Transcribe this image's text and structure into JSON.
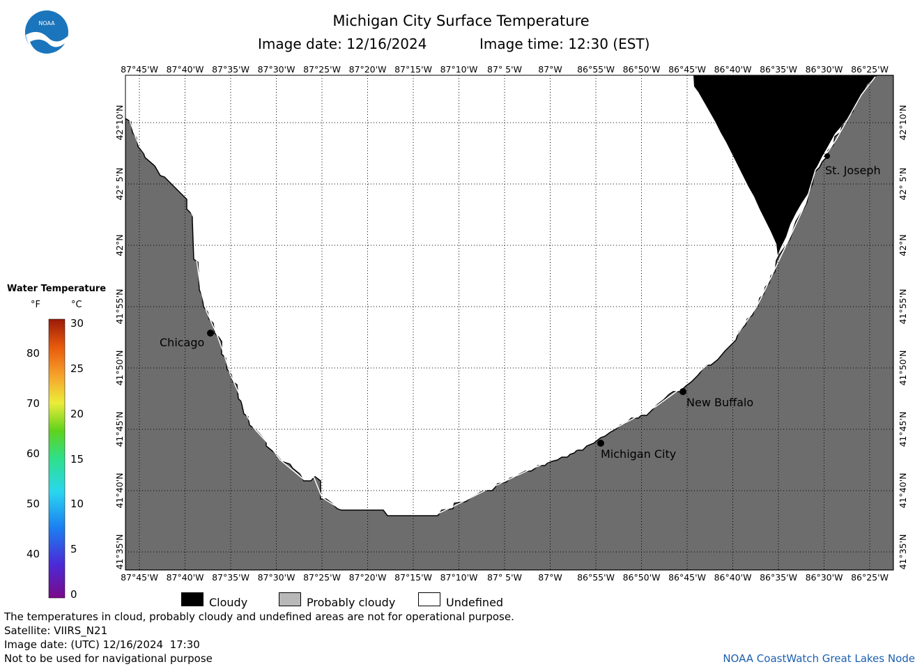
{
  "header": {
    "title": "Michigan City Surface Temperature",
    "image_date": "Image date: 12/16/2024",
    "image_time": "Image time: 12:30 (EST)"
  },
  "logo": {
    "text": "NOAA"
  },
  "colorbar": {
    "title": "Water Temperature",
    "unit_f": "°F",
    "unit_c": "°C",
    "f_ticks": [
      {
        "value": 80,
        "label": "80"
      },
      {
        "value": 70,
        "label": "70"
      },
      {
        "value": 60,
        "label": "60"
      },
      {
        "value": 50,
        "label": "50"
      },
      {
        "value": 40,
        "label": "40"
      }
    ],
    "c_ticks": [
      {
        "value": 30,
        "label": "30"
      },
      {
        "value": 25,
        "label": "25"
      },
      {
        "value": 20,
        "label": "20"
      },
      {
        "value": 15,
        "label": "15"
      },
      {
        "value": 10,
        "label": "10"
      },
      {
        "value": 5,
        "label": "5"
      },
      {
        "value": 0,
        "label": "0"
      }
    ]
  },
  "map": {
    "lon_labels": [
      "87°45'W",
      "87°40'W",
      "87°35'W",
      "87°30'W",
      "87°25'W",
      "87°20'W",
      "87°15'W",
      "87°10'W",
      "87° 5'W",
      "87°W",
      "86°55'W",
      "86°50'W",
      "86°45'W",
      "86°40'W",
      "86°35'W",
      "86°30'W",
      "86°25'W"
    ],
    "lat_labels": [
      "42°10'N",
      "42° 5'N",
      "42°N",
      "41°55'N",
      "41°50'N",
      "41°45'N",
      "41°40'N",
      "41°35'N"
    ],
    "cities": {
      "chicago": "Chicago",
      "michigan_city": "Michigan City",
      "new_buffalo": "New Buffalo",
      "st_joseph": "St. Joseph"
    },
    "colors": {
      "land": "#6d6d6d",
      "cloudy": "#000000",
      "undefined": "#ffffff"
    }
  },
  "legend": {
    "cloudy": "Cloudy",
    "probably_cloudy": "Probably cloudy",
    "undefined": "Undefined"
  },
  "footer": {
    "line1": "The temperatures in cloud, probably cloudy and undefined areas are not for operational purpose.",
    "line2": "Satellite: VIIRS_N21",
    "line3": "Image date: (UTC) 12/16/2024  17:30",
    "line4": "Not to be used for navigational purpose",
    "credit": "NOAA CoastWatch Great Lakes Node"
  }
}
